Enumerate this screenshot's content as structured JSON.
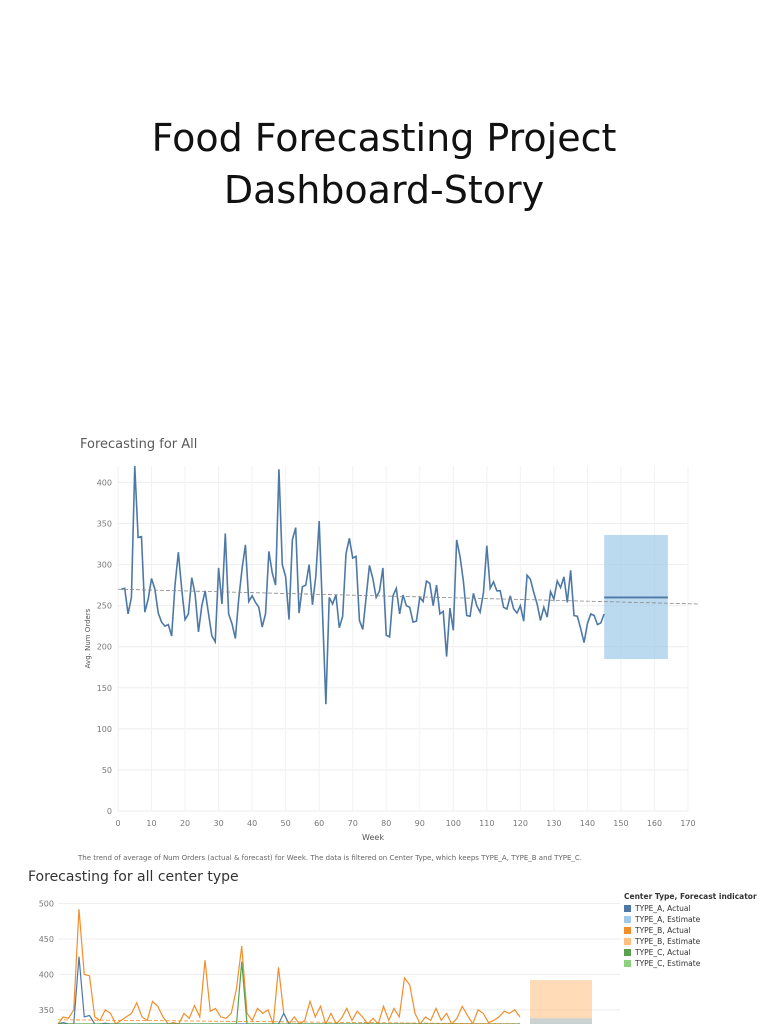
{
  "slide": {
    "title_line1": "Food Forecasting Project",
    "title_line2": "Dashboard-Story"
  },
  "chart_data": [
    {
      "type": "line",
      "title": "Forecasting for All",
      "xlabel": "Week",
      "ylabel": "Avg. Num Orders",
      "xlim": [
        0,
        170
      ],
      "ylim": [
        0,
        420
      ],
      "xticks": [
        0,
        10,
        20,
        30,
        40,
        50,
        60,
        70,
        80,
        90,
        100,
        110,
        120,
        130,
        140,
        150,
        160,
        170
      ],
      "yticks": [
        0,
        50,
        100,
        150,
        200,
        250,
        300,
        350,
        400
      ],
      "grid": true,
      "caption": "The trend of average of Num Orders (actual & forecast) for Week. The data is filtered on Center Type, which keeps TYPE_A, TYPE_B and TYPE_C.",
      "series": [
        {
          "color": "#4e79a7",
          "x": [
            1,
            2,
            3,
            4,
            5,
            6,
            7,
            8,
            9,
            10,
            11,
            12,
            13,
            14,
            15,
            16,
            17,
            18,
            19,
            20,
            21,
            22,
            23,
            24,
            25,
            26,
            27,
            28,
            29,
            30,
            31,
            32,
            33,
            34,
            35,
            36,
            37,
            38,
            39,
            40,
            41,
            42,
            43,
            44,
            45,
            46,
            47,
            48,
            49,
            50,
            51,
            52,
            53,
            54,
            55,
            56,
            57,
            58,
            59,
            60,
            61,
            62,
            63,
            64,
            65,
            66,
            67,
            68,
            69,
            70,
            71,
            72,
            73,
            74,
            75,
            76,
            77,
            78,
            79,
            80,
            81,
            82,
            83,
            84,
            85,
            86,
            87,
            88,
            89,
            90,
            91,
            92,
            93,
            94,
            95,
            96,
            97,
            98,
            99,
            100,
            101,
            102,
            103,
            104,
            105,
            106,
            107,
            108,
            109,
            110,
            111,
            112,
            113,
            114,
            115,
            116,
            117,
            118,
            119,
            120,
            121,
            122,
            123,
            124,
            125,
            126,
            127,
            128,
            129,
            130,
            131,
            132,
            133,
            134,
            135,
            136,
            137,
            138,
            139,
            140,
            141,
            142,
            143,
            144,
            145
          ],
          "values": [
            270,
            271,
            240,
            260,
            420,
            333,
            334,
            242,
            258,
            283,
            270,
            241,
            230,
            225,
            227,
            213,
            275,
            315,
            270,
            233,
            240,
            284,
            264,
            218,
            250,
            268,
            240,
            213,
            206,
            296,
            252,
            338,
            240,
            228,
            210,
            258,
            295,
            324,
            255,
            262,
            254,
            248,
            224,
            240,
            316,
            290,
            275,
            416,
            300,
            285,
            233,
            330,
            345,
            241,
            273,
            275,
            300,
            251,
            286,
            353,
            242,
            130,
            260,
            252,
            263,
            223,
            237,
            313,
            332,
            308,
            310,
            232,
            221,
            260,
            299,
            283,
            260,
            268,
            296,
            214,
            212,
            262,
            271,
            240,
            263,
            250,
            248,
            230,
            231,
            260,
            255,
            280,
            277,
            250,
            275,
            240,
            243,
            188,
            247,
            220,
            330,
            310,
            280,
            238,
            237,
            265,
            250,
            242,
            266,
            323,
            271,
            279,
            268,
            268,
            248,
            246,
            262,
            246,
            241,
            250,
            231,
            287,
            282,
            266,
            252,
            232,
            248,
            236,
            267,
            258,
            280,
            272,
            285,
            254,
            293,
            238,
            237,
            222,
            205,
            228,
            240,
            238,
            227,
            229,
            240
          ]
        }
      ],
      "forecast": {
        "x": [
          145,
          164
        ],
        "value": 260,
        "band": [
          185,
          336
        ]
      },
      "trend": {
        "x": [
          0,
          173
        ],
        "values": [
          270,
          252
        ]
      }
    },
    {
      "type": "line",
      "title": "Forecasting for all center type",
      "ylim": [
        330,
        505
      ],
      "yticks": [
        350,
        400,
        450,
        500
      ],
      "legend": {
        "title": "Center Type, Forecast indicator",
        "position": "right",
        "items": [
          {
            "label": "TYPE_A, Actual",
            "color": "#4e79a7"
          },
          {
            "label": "TYPE_A, Estimate",
            "color": "#a0cbe8"
          },
          {
            "label": "TYPE_B, Actual",
            "color": "#f28e2b"
          },
          {
            "label": "TYPE_B, Estimate",
            "color": "#ffbe7d"
          },
          {
            "label": "TYPE_C, Actual",
            "color": "#59a14f"
          },
          {
            "label": "TYPE_C, Estimate",
            "color": "#8cd17d"
          }
        ]
      },
      "series": [
        {
          "color": "#f28e2b",
          "values": [
            330,
            340,
            338,
            350,
            492,
            400,
            398,
            340,
            335,
            350,
            345,
            330,
            335,
            340,
            345,
            360,
            340,
            335,
            362,
            355,
            340,
            330,
            332,
            330,
            345,
            338,
            356,
            340,
            420,
            348,
            352,
            340,
            338,
            345,
            380,
            440,
            345,
            335,
            352,
            345,
            350,
            330,
            410,
            345,
            330,
            340,
            330,
            335,
            362,
            340,
            355,
            330,
            345,
            330,
            338,
            352,
            335,
            348,
            340,
            330,
            338,
            330,
            355,
            335,
            352,
            340,
            395,
            385,
            345,
            330,
            340,
            335,
            352,
            335,
            345,
            330,
            338,
            355,
            342,
            330,
            350,
            345,
            332,
            335,
            340,
            348,
            345,
            350,
            340
          ]
        },
        {
          "color": "#4e79a7",
          "values": [
            330,
            332,
            330,
            330,
            425,
            340,
            342,
            330,
            330,
            331,
            330,
            330,
            330,
            330,
            330,
            330,
            330,
            330,
            330,
            330,
            330,
            330,
            330,
            330,
            330,
            330,
            330,
            330,
            330,
            330,
            330,
            330,
            330,
            330,
            330,
            330,
            330,
            330,
            330,
            330,
            330,
            330,
            330,
            345,
            330,
            330,
            330,
            330,
            330,
            330,
            330,
            330,
            330,
            330,
            330,
            330,
            330,
            330,
            330,
            330,
            330,
            330,
            330,
            330,
            330,
            330,
            330,
            330,
            330,
            330,
            330,
            330,
            330,
            330,
            330,
            330,
            330,
            330,
            330,
            330,
            330,
            330,
            330,
            330,
            330,
            330,
            330,
            330,
            330
          ]
        },
        {
          "color": "#59a14f",
          "values": [
            330,
            330,
            330,
            330,
            330,
            330,
            330,
            330,
            330,
            330,
            330,
            330,
            330,
            330,
            330,
            330,
            330,
            330,
            330,
            330,
            330,
            330,
            330,
            330,
            330,
            330,
            330,
            330,
            330,
            330,
            330,
            330,
            330,
            330,
            330,
            418,
            330,
            330,
            330,
            330,
            330,
            330,
            330,
            330,
            330,
            330,
            330,
            330,
            330,
            330,
            330,
            330,
            330,
            330,
            330,
            330,
            330,
            330,
            330,
            330,
            330,
            330,
            330,
            330,
            330,
            330,
            330,
            330,
            330,
            330,
            330,
            330,
            330,
            330,
            330,
            330,
            330,
            330,
            330,
            330,
            330,
            330,
            330,
            330,
            330,
            330,
            330,
            330,
            330
          ]
        }
      ],
      "forecast_bands": [
        {
          "color": "#ffbe7d",
          "range": [
            330,
            392
          ]
        },
        {
          "color": "#a0cbe8",
          "range": [
            330,
            338
          ]
        }
      ],
      "trend": {
        "values": [
          336,
          330
        ]
      }
    }
  ]
}
